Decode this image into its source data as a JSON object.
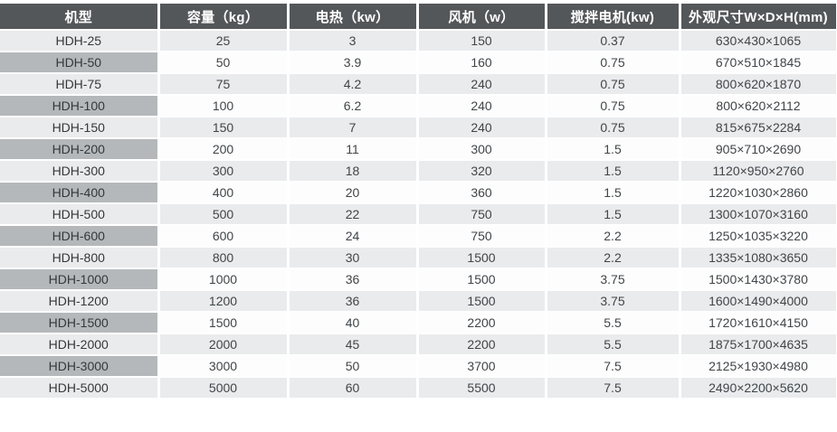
{
  "colors": {
    "header_bg": "#54575a",
    "header_text": "#ffffff",
    "first_col_bg": "#b4b8bb",
    "row_alt_bg": "#e9ebed",
    "row_bg": "#fdfdfd",
    "text": "#414548",
    "separator": "#ffffff"
  },
  "table": {
    "headers": [
      "机型",
      "容量（kg）",
      "电热（kw）",
      "风机（w）",
      "搅拌电机(kw)",
      "外观尺寸W×D×H(mm)"
    ],
    "column_keys": [
      "model",
      "capacity-kg",
      "heating-kw",
      "fan-w",
      "mixer-motor-kw",
      "dimensions-mm"
    ],
    "rows": [
      [
        "HDH-25",
        "25",
        "3",
        "150",
        "0.37",
        "630×430×1065"
      ],
      [
        "HDH-50",
        "50",
        "3.9",
        "160",
        "0.75",
        "670×510×1845"
      ],
      [
        "HDH-75",
        "75",
        "4.2",
        "240",
        "0.75",
        "800×620×1870"
      ],
      [
        "HDH-100",
        "100",
        "6.2",
        "240",
        "0.75",
        "800×620×2112"
      ],
      [
        "HDH-150",
        "150",
        "7",
        "240",
        "0.75",
        "815×675×2284"
      ],
      [
        "HDH-200",
        "200",
        "11",
        "300",
        "1.5",
        "905×710×2690"
      ],
      [
        "HDH-300",
        "300",
        "18",
        "320",
        "1.5",
        "1120×950×2760"
      ],
      [
        "HDH-400",
        "400",
        "20",
        "360",
        "1.5",
        "1220×1030×2860"
      ],
      [
        "HDH-500",
        "500",
        "22",
        "750",
        "1.5",
        "1300×1070×3160"
      ],
      [
        "HDH-600",
        "600",
        "24",
        "750",
        "2.2",
        "1250×1035×3220"
      ],
      [
        "HDH-800",
        "800",
        "30",
        "1500",
        "2.2",
        "1335×1080×3650"
      ],
      [
        "HDH-1000",
        "1000",
        "36",
        "1500",
        "3.75",
        "1500×1430×3780"
      ],
      [
        "HDH-1200",
        "1200",
        "36",
        "1500",
        "3.75",
        "1600×1490×4000"
      ],
      [
        "HDH-1500",
        "1500",
        "40",
        "2200",
        "5.5",
        "1720×1610×4150"
      ],
      [
        "HDH-2000",
        "2000",
        "45",
        "2200",
        "5.5",
        "1875×1700×4635"
      ],
      [
        "HDH-3000",
        "3000",
        "50",
        "3700",
        "7.5",
        "2125×1930×4980"
      ],
      [
        "HDH-5000",
        "5000",
        "60",
        "5500",
        "7.5",
        "2490×2200×5620"
      ]
    ]
  }
}
